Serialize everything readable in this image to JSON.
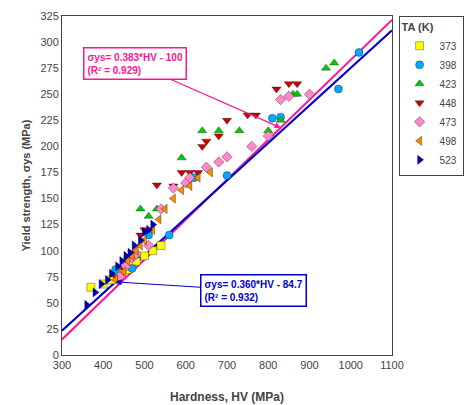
{
  "chart_data": {
    "type": "scatter",
    "xlabel": "Hardness, HV (MPa)",
    "ylabel": "Yield strength, σys (MPa)",
    "xlim": [
      300,
      1100
    ],
    "ylim": [
      0,
      325
    ],
    "xticks": [
      300,
      400,
      500,
      600,
      700,
      800,
      900,
      1000,
      1100
    ],
    "yticks": [
      0,
      25,
      50,
      75,
      100,
      125,
      150,
      175,
      200,
      225,
      250,
      275,
      300,
      325
    ],
    "grid": false,
    "legend": "right",
    "legend_title": "TA (K)",
    "series": [
      {
        "type": "line",
        "color": "#FF1493",
        "x": [
          300,
          1100
        ],
        "values": [
          14.9,
          321.3
        ]
      },
      {
        "type": "line",
        "color": "#0000CC",
        "x": [
          300,
          1100
        ],
        "values": [
          23.3,
          311.3
        ]
      },
      {
        "name": "373",
        "type": "scatter",
        "color": "#FFFF00",
        "marker": "square",
        "x": [
          370,
          400,
          420,
          440,
          460,
          480,
          500,
          520,
          540
        ],
        "values": [
          65,
          68,
          72,
          78,
          82,
          90,
          95,
          100,
          105
        ]
      },
      {
        "name": "398",
        "type": "scatter",
        "color": "#00AAFF",
        "marker": "circle",
        "x": [
          430,
          470,
          510,
          560,
          620,
          700,
          810,
          830,
          970,
          1020
        ],
        "values": [
          82,
          83,
          115,
          115,
          170,
          172,
          227,
          228,
          255,
          290
        ]
      },
      {
        "name": "423",
        "type": "scatter",
        "color": "#00CC00",
        "marker": "triangle-up",
        "x": [
          480,
          490,
          510,
          530,
          590,
          640,
          680,
          730,
          800,
          830,
          860,
          870,
          940,
          960
        ],
        "values": [
          95,
          140,
          133,
          140,
          189,
          215,
          215,
          215,
          215,
          225,
          250,
          250,
          275,
          280
        ]
      },
      {
        "name": "448",
        "type": "scatter",
        "color": "#CC0000",
        "marker": "triangle-down",
        "x": [
          430,
          450,
          460,
          470,
          490,
          500,
          530,
          570,
          590,
          610,
          630,
          640,
          650,
          680,
          700,
          750,
          770,
          820,
          850,
          870
        ],
        "values": [
          75,
          82,
          92,
          98,
          115,
          120,
          163,
          162,
          175,
          175,
          175,
          200,
          205,
          210,
          225,
          230,
          230,
          255,
          260,
          260
        ]
      },
      {
        "name": "473",
        "type": "scatter",
        "color": "#FF88CC",
        "marker": "diamond",
        "x": [
          440,
          455,
          470,
          480,
          510,
          540,
          570,
          600,
          610,
          650,
          680,
          700,
          760,
          800,
          830,
          850,
          900
        ],
        "values": [
          75,
          85,
          93,
          97,
          105,
          140,
          160,
          165,
          170,
          180,
          185,
          190,
          200,
          210,
          245,
          248,
          250
        ]
      },
      {
        "name": "498",
        "type": "scatter",
        "color": "#FF8800",
        "marker": "triangle-left",
        "x": [
          430,
          450,
          460,
          470,
          480,
          490,
          500,
          520,
          535,
          550,
          570,
          590,
          610,
          630,
          660
        ],
        "values": [
          72,
          80,
          90,
          95,
          100,
          105,
          110,
          120,
          130,
          140,
          150,
          158,
          162,
          170,
          175
        ]
      },
      {
        "name": "523",
        "type": "scatter",
        "color": "#0000BB",
        "marker": "triangle-right",
        "x": [
          360,
          380,
          395,
          410,
          420,
          435,
          445,
          455,
          465,
          475,
          490,
          500,
          510,
          520
        ],
        "values": [
          48,
          60,
          68,
          72,
          78,
          85,
          90,
          95,
          98,
          105,
          110,
          118,
          120,
          125
        ]
      }
    ],
    "annotations": [
      {
        "text": "σys= 0.383*HV - 100\n(R² = 0.929)",
        "color": "#FF1493"
      },
      {
        "text": "σys= 0.360*HV - 84.7\n(R² = 0.932)",
        "color": "#0000CC"
      }
    ]
  }
}
